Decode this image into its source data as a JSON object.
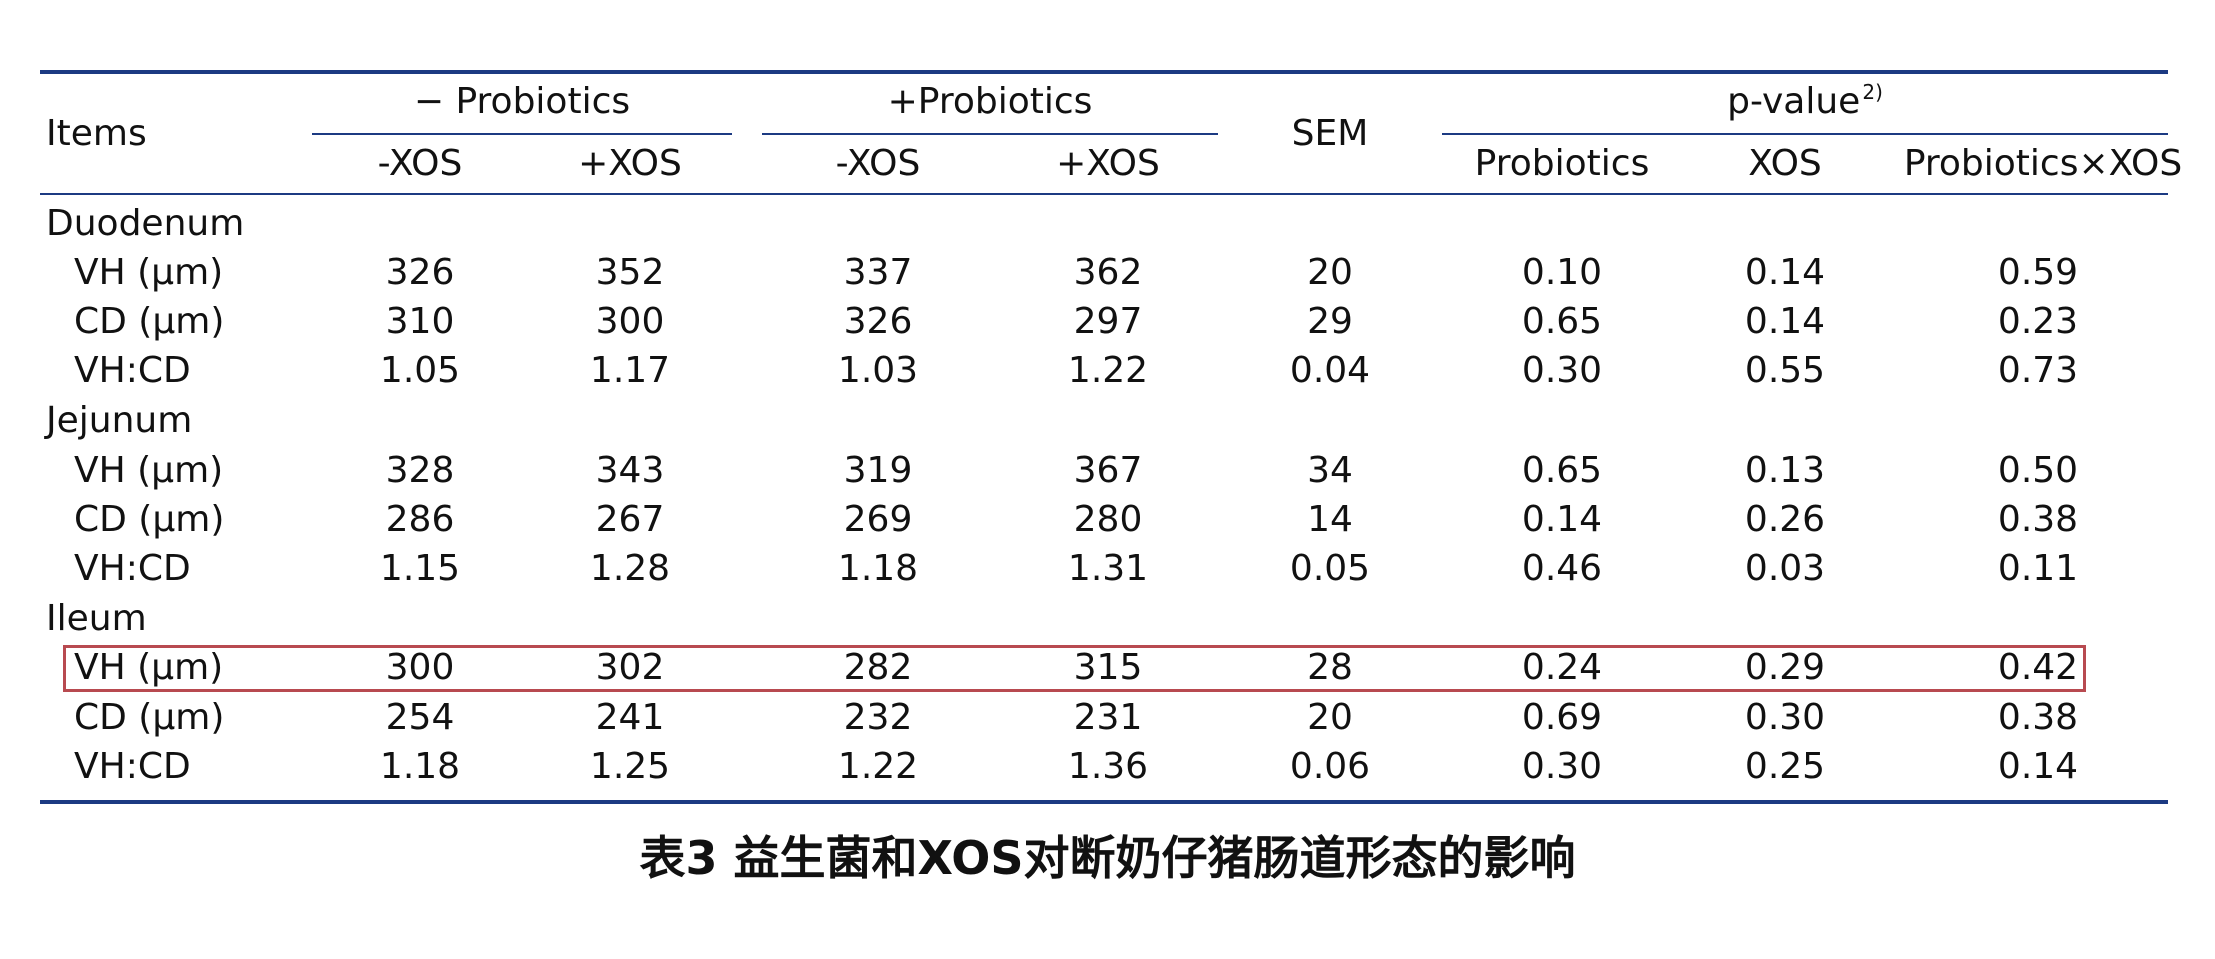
{
  "table": {
    "header": {
      "items": "Items",
      "neg_probiotics": "− Probiotics",
      "pos_probiotics": "+Probiotics",
      "sem": "SEM",
      "pvalue": "p-value",
      "pvalue_ref": "2)",
      "sub_cols": [
        "-XOS",
        "+XOS",
        "-XOS",
        "+XOS"
      ],
      "p_cols": [
        "Probiotics",
        "XOS",
        "Probiotics×XOS"
      ]
    },
    "sections": [
      {
        "label": "Duodenum",
        "rows": [
          {
            "item": "VH (μm)",
            "vals": [
              "326",
              "352",
              "337",
              "362",
              "20",
              "0.10",
              "0.14",
              "0.59"
            ]
          },
          {
            "item": "CD (μm)",
            "vals": [
              "310",
              "300",
              "326",
              "297",
              "29",
              "0.65",
              "0.14",
              "0.23"
            ]
          },
          {
            "item": "VH:CD",
            "vals": [
              "1.05",
              "1.17",
              "1.03",
              "1.22",
              "0.04",
              "0.30",
              "0.55",
              "0.73"
            ]
          }
        ]
      },
      {
        "label": "Jejunum",
        "rows": [
          {
            "item": "VH (μm)",
            "vals": [
              "328",
              "343",
              "319",
              "367",
              "34",
              "0.65",
              "0.13",
              "0.50"
            ]
          },
          {
            "item": "CD (μm)",
            "vals": [
              "286",
              "267",
              "269",
              "280",
              "14",
              "0.14",
              "0.26",
              "0.38"
            ]
          },
          {
            "item": "VH:CD",
            "vals": [
              "1.15",
              "1.28",
              "1.18",
              "1.31",
              "0.05",
              "0.46",
              "0.03",
              "0.11"
            ]
          }
        ]
      },
      {
        "label": "Ileum",
        "rows": [
          {
            "item": "VH (μm)",
            "vals": [
              "300",
              "302",
              "282",
              "315",
              "28",
              "0.24",
              "0.29",
              "0.42"
            ]
          },
          {
            "item": "CD (μm)",
            "vals": [
              "254",
              "241",
              "232",
              "231",
              "20",
              "0.69",
              "0.30",
              "0.38"
            ]
          },
          {
            "item": "VH:CD",
            "vals": [
              "1.18",
              "1.25",
              "1.22",
              "1.36",
              "0.06",
              "0.30",
              "0.25",
              "0.14"
            ]
          }
        ]
      }
    ]
  },
  "highlight": {
    "section_index": 2,
    "row_index": 0,
    "color": "#b84a50"
  },
  "caption": "表3 益生菌和XOS对断奶仔猪肠道形态的影响",
  "colors": {
    "rule": "#1c3a82",
    "text": "#111111"
  }
}
